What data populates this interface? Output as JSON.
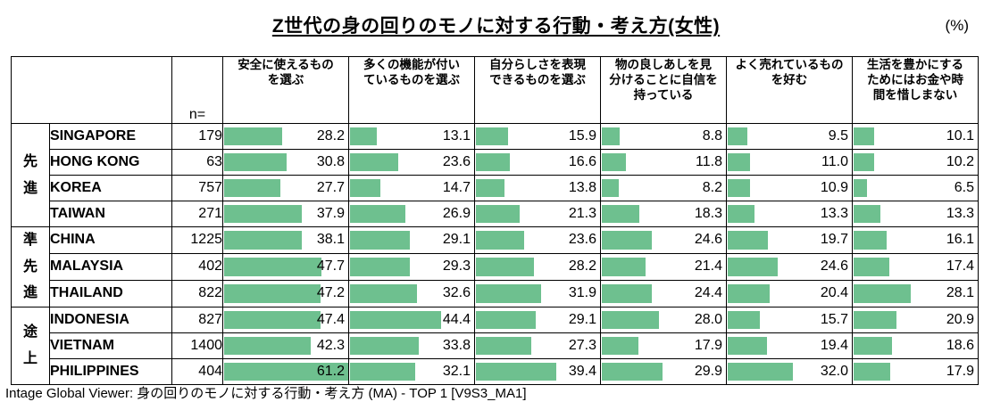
{
  "chart_data": {
    "type": "table",
    "title": "Z世代の身の回りのモノに対する行動・考え方(女性)",
    "unit": "(%)",
    "n_label": "n=",
    "columns": [
      "安全に使えるもの\nを選ぶ",
      "多くの機能が付い\nているものを選ぶ",
      "自分らしさを表現\nできるものを選ぶ",
      "物の良しあしを見\n分けることに自信を\n持っている",
      "よく売れているもの\nを好む",
      "生活を豊かにする\nためにはお金や時\n間を惜しまない"
    ],
    "groups": [
      {
        "label": "先進",
        "start": 0,
        "span": 4
      },
      {
        "label": "準先進",
        "start": 4,
        "span": 3
      },
      {
        "label": "途上",
        "start": 7,
        "span": 3
      }
    ],
    "rows": [
      {
        "country": "SINGAPORE",
        "n": 179,
        "values": [
          28.2,
          13.1,
          15.9,
          8.8,
          9.5,
          10.1
        ]
      },
      {
        "country": "HONG KONG",
        "n": 63,
        "values": [
          30.8,
          23.6,
          16.6,
          11.8,
          11.0,
          10.2
        ]
      },
      {
        "country": "KOREA",
        "n": 757,
        "values": [
          27.7,
          14.7,
          13.8,
          8.2,
          10.9,
          6.5
        ]
      },
      {
        "country": "TAIWAN",
        "n": 271,
        "values": [
          37.9,
          26.9,
          21.3,
          18.3,
          13.3,
          13.3
        ]
      },
      {
        "country": "CHINA",
        "n": 1225,
        "values": [
          38.1,
          29.1,
          23.6,
          24.6,
          19.7,
          16.1
        ]
      },
      {
        "country": "MALAYSIA",
        "n": 402,
        "values": [
          47.7,
          29.3,
          28.2,
          21.4,
          24.6,
          17.4
        ]
      },
      {
        "country": "THAILAND",
        "n": 822,
        "values": [
          47.2,
          32.6,
          31.9,
          24.4,
          20.4,
          28.1
        ]
      },
      {
        "country": "INDONESIA",
        "n": 827,
        "values": [
          47.4,
          44.4,
          29.1,
          28.0,
          15.7,
          20.9
        ]
      },
      {
        "country": "VIETNAM",
        "n": 1400,
        "values": [
          42.3,
          33.8,
          27.3,
          17.9,
          19.4,
          18.6
        ]
      },
      {
        "country": "PHILIPPINES",
        "n": 404,
        "values": [
          61.2,
          32.1,
          39.4,
          29.9,
          32.0,
          17.9
        ]
      }
    ],
    "bar_scale_max": 61.2,
    "bar_color": "#6ec08f",
    "highlight_color": "#ee0000",
    "highlights": [
      {
        "col": 0,
        "row_start": 0,
        "row_end": 3
      },
      {
        "col": 2,
        "row_start": 4,
        "row_end": 6
      },
      {
        "col": 5,
        "row_start": 0,
        "row_end": 3
      }
    ],
    "grid": "on",
    "source_note": "Intage Global Viewer: 身の回りのモノに対する行動・考え方 (MA) - TOP 1 [V9S3_MA1]"
  }
}
